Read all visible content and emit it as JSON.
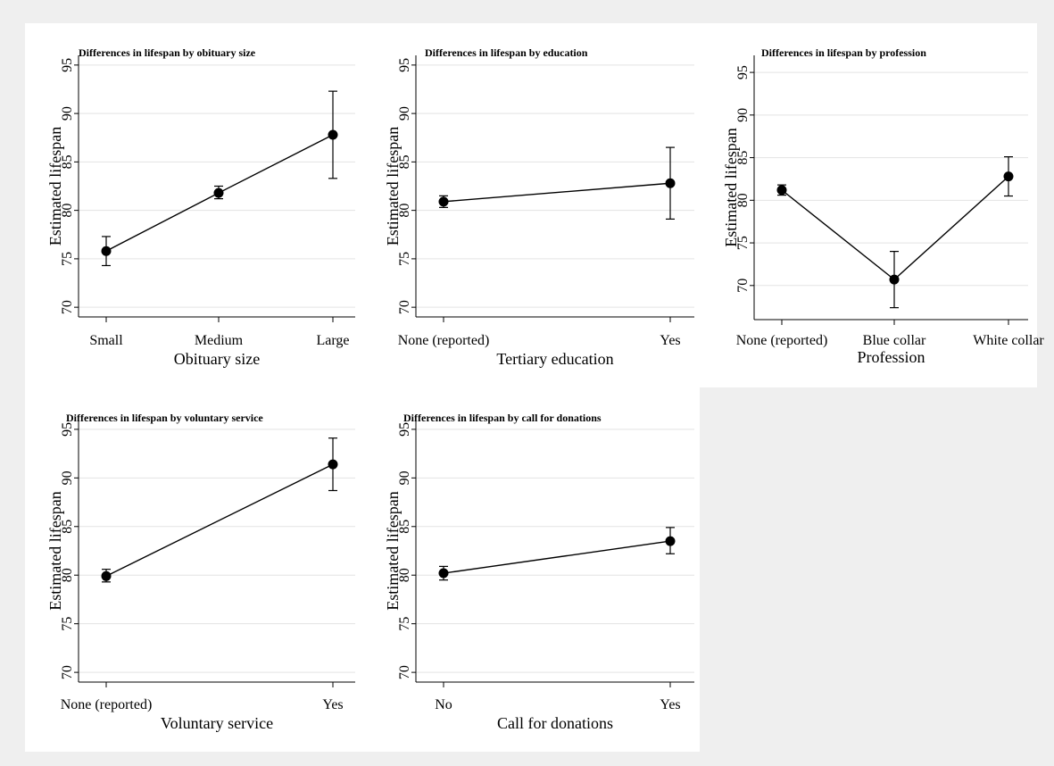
{
  "chart_data": [
    {
      "type": "line",
      "title": "Differences in lifespan by obituary size",
      "xlabel": "Obituary size",
      "ylabel": "Estimated lifespan",
      "categories": [
        "Small",
        "Medium",
        "Large"
      ],
      "values": [
        75.8,
        81.8,
        87.8
      ],
      "ci_low": [
        74.3,
        81.2,
        83.3
      ],
      "ci_high": [
        77.3,
        82.5,
        92.3
      ],
      "ylim": [
        69,
        96
      ],
      "yticks": [
        70,
        75,
        80,
        85,
        90,
        95
      ],
      "grid": true
    },
    {
      "type": "line",
      "title": "Differences in lifespan by education",
      "xlabel": "Tertiary education",
      "ylabel": "Estimated lifespan",
      "categories": [
        "None (reported)",
        "Yes"
      ],
      "values": [
        80.9,
        82.8
      ],
      "ci_low": [
        80.3,
        79.1
      ],
      "ci_high": [
        81.5,
        86.5
      ],
      "ylim": [
        69,
        96
      ],
      "yticks": [
        70,
        75,
        80,
        85,
        90,
        95
      ],
      "grid": true
    },
    {
      "type": "line",
      "title": "Differences in lifespan by profession",
      "xlabel": "Profession",
      "ylabel": "Estimated lifespan",
      "categories": [
        "None (reported)",
        "Blue collar",
        "White collar"
      ],
      "values": [
        81.2,
        70.7,
        82.8
      ],
      "ci_low": [
        80.6,
        67.4,
        80.5
      ],
      "ci_high": [
        81.8,
        74.0,
        85.1
      ],
      "ylim": [
        66,
        97
      ],
      "yticks": [
        70,
        75,
        80,
        85,
        90,
        95
      ],
      "grid": true
    },
    {
      "type": "line",
      "title": "Differences in lifespan by voluntary service",
      "xlabel": "Voluntary service",
      "ylabel": "Estimated lifespan",
      "categories": [
        "None (reported)",
        "Yes"
      ],
      "values": [
        79.9,
        91.4
      ],
      "ci_low": [
        79.3,
        88.7
      ],
      "ci_high": [
        80.6,
        94.1
      ],
      "ylim": [
        69,
        96
      ],
      "yticks": [
        70,
        75,
        80,
        85,
        90,
        95
      ],
      "grid": true
    },
    {
      "type": "line",
      "title": "Differences in lifespan by call for donations",
      "xlabel": "Call for donations",
      "ylabel": "Estimated lifespan",
      "categories": [
        "No",
        "Yes"
      ],
      "values": [
        80.2,
        83.5
      ],
      "ci_low": [
        79.5,
        82.2
      ],
      "ci_high": [
        80.9,
        84.9
      ],
      "ylim": [
        69,
        96
      ],
      "yticks": [
        70,
        75,
        80,
        85,
        90,
        95
      ],
      "grid": true
    }
  ]
}
